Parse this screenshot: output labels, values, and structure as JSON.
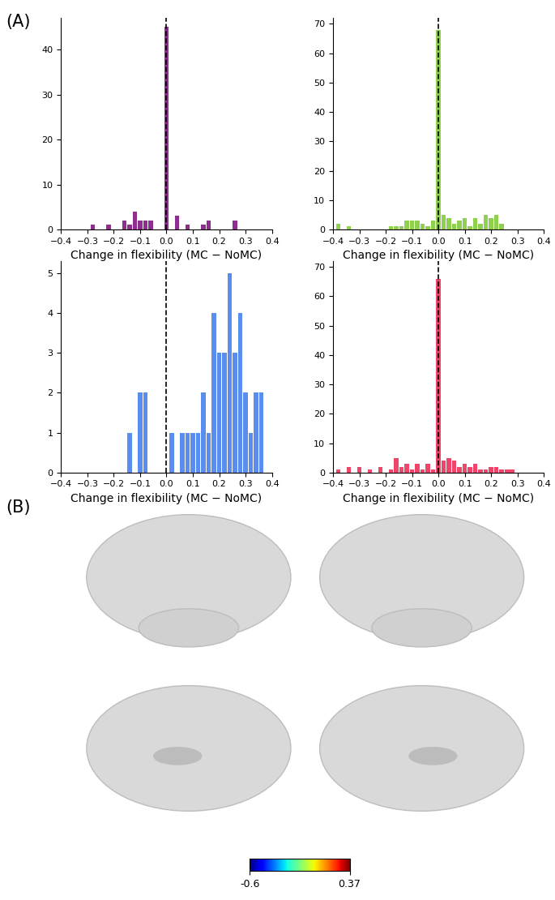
{
  "panel_labels": [
    "(A)",
    "(B)"
  ],
  "chart_data": [
    {
      "type": "histogram",
      "x_label": "Change in flexibility (MC − NoMC)",
      "color": "#8e2e8e",
      "bins": [
        -0.41,
        -0.39,
        -0.37,
        -0.35,
        -0.33,
        -0.31,
        -0.29,
        -0.27,
        -0.25,
        -0.23,
        -0.21,
        -0.19,
        -0.17,
        -0.15,
        -0.13,
        -0.11,
        -0.09,
        -0.07,
        -0.05,
        -0.03,
        -0.01,
        0.01,
        0.03,
        0.05,
        0.07,
        0.09,
        0.11,
        0.13,
        0.15,
        0.17,
        0.19,
        0.21,
        0.23,
        0.25,
        0.27,
        0.29,
        0.31,
        0.33,
        0.35,
        0.37,
        0.39,
        0.41
      ],
      "counts": [
        0,
        0,
        0,
        0,
        0,
        0,
        1,
        0,
        0,
        1,
        0,
        0,
        2,
        1,
        4,
        2,
        2,
        2,
        0,
        0,
        45,
        0,
        3,
        0,
        1,
        0,
        0,
        1,
        2,
        0,
        0,
        0,
        0,
        2,
        0,
        0,
        0,
        0,
        0,
        0,
        0
      ],
      "vline": 0,
      "xlim": [
        -0.4,
        0.4
      ],
      "xticks": [
        {
          "value": -0.4,
          "label": "−0.4"
        },
        {
          "value": -0.3,
          "label": "−0.3"
        },
        {
          "value": -0.2,
          "label": "−0.2"
        },
        {
          "value": -0.1,
          "label": "−0.1"
        },
        {
          "value": 0.0,
          "label": "0.0"
        },
        {
          "value": 0.1,
          "label": "0.1"
        },
        {
          "value": 0.2,
          "label": "0.2"
        },
        {
          "value": 0.3,
          "label": "0.3"
        },
        {
          "value": 0.4,
          "label": "0.4"
        }
      ],
      "ylim": [
        0,
        47
      ],
      "yticks": [
        0,
        10,
        20,
        30,
        40
      ]
    },
    {
      "type": "histogram",
      "x_label": "Change in flexibility (MC − NoMC)",
      "color": "#8fd14f",
      "bins": [
        -0.41,
        -0.39,
        -0.37,
        -0.35,
        -0.33,
        -0.31,
        -0.29,
        -0.27,
        -0.25,
        -0.23,
        -0.21,
        -0.19,
        -0.17,
        -0.15,
        -0.13,
        -0.11,
        -0.09,
        -0.07,
        -0.05,
        -0.03,
        -0.01,
        0.01,
        0.03,
        0.05,
        0.07,
        0.09,
        0.11,
        0.13,
        0.15,
        0.17,
        0.19,
        0.21,
        0.23,
        0.25,
        0.27,
        0.29,
        0.31,
        0.33,
        0.35,
        0.37,
        0.39,
        0.41
      ],
      "counts": [
        0,
        2,
        0,
        1,
        0,
        0,
        0,
        0,
        0,
        0,
        0,
        1,
        1,
        1,
        3,
        3,
        3,
        2,
        1,
        3,
        68,
        5,
        4,
        2,
        3,
        4,
        1,
        4,
        2,
        5,
        4,
        5,
        2,
        0,
        0,
        0,
        0,
        0,
        0,
        0,
        0
      ],
      "vline": 0,
      "xlim": [
        -0.4,
        0.4
      ],
      "xticks": [
        {
          "value": -0.4,
          "label": "−0.4"
        },
        {
          "value": -0.3,
          "label": "−0.3"
        },
        {
          "value": -0.2,
          "label": "−0.2"
        },
        {
          "value": -0.1,
          "label": "−0.1"
        },
        {
          "value": 0.0,
          "label": "0.0"
        },
        {
          "value": 0.1,
          "label": "0.1"
        },
        {
          "value": 0.2,
          "label": "0.2"
        },
        {
          "value": 0.3,
          "label": "0.3"
        },
        {
          "value": 0.4,
          "label": "0.4"
        }
      ],
      "ylim": [
        0,
        72
      ],
      "yticks": [
        0,
        10,
        20,
        30,
        40,
        50,
        60,
        70
      ]
    },
    {
      "type": "histogram",
      "x_label": "Change in flexibility (MC − NoMC)",
      "color": "#5b8def",
      "bins": [
        -0.41,
        -0.39,
        -0.37,
        -0.35,
        -0.33,
        -0.31,
        -0.29,
        -0.27,
        -0.25,
        -0.23,
        -0.21,
        -0.19,
        -0.17,
        -0.15,
        -0.13,
        -0.11,
        -0.09,
        -0.07,
        -0.05,
        -0.03,
        -0.01,
        0.01,
        0.03,
        0.05,
        0.07,
        0.09,
        0.11,
        0.13,
        0.15,
        0.17,
        0.19,
        0.21,
        0.23,
        0.25,
        0.27,
        0.29,
        0.31,
        0.33,
        0.35,
        0.37,
        0.39,
        0.41
      ],
      "counts": [
        0,
        0,
        0,
        0,
        0,
        0,
        0,
        0,
        0,
        0,
        0,
        0,
        0,
        1,
        0,
        2,
        2,
        0,
        0,
        0,
        0,
        1,
        0,
        1,
        1,
        1,
        1,
        2,
        1,
        4,
        3,
        3,
        5,
        3,
        4,
        2,
        1,
        2,
        2,
        0,
        0
      ],
      "vline": 0,
      "xlim": [
        -0.4,
        0.4
      ],
      "xticks": [
        {
          "value": -0.4,
          "label": "−0.4"
        },
        {
          "value": -0.3,
          "label": "−0.3"
        },
        {
          "value": -0.2,
          "label": "−0.2"
        },
        {
          "value": -0.1,
          "label": "−0.1"
        },
        {
          "value": 0.0,
          "label": "0.0"
        },
        {
          "value": 0.1,
          "label": "0.1"
        },
        {
          "value": 0.2,
          "label": "0.2"
        },
        {
          "value": 0.3,
          "label": "0.3"
        },
        {
          "value": 0.4,
          "label": "0.4"
        }
      ],
      "ylim": [
        0,
        5.3
      ],
      "yticks": [
        0,
        1,
        2,
        3,
        4,
        5
      ]
    },
    {
      "type": "histogram",
      "x_label": "Change in flexibility (MC − NoMC)",
      "color": "#f0456a",
      "bins": [
        -0.41,
        -0.39,
        -0.37,
        -0.35,
        -0.33,
        -0.31,
        -0.29,
        -0.27,
        -0.25,
        -0.23,
        -0.21,
        -0.19,
        -0.17,
        -0.15,
        -0.13,
        -0.11,
        -0.09,
        -0.07,
        -0.05,
        -0.03,
        -0.01,
        0.01,
        0.03,
        0.05,
        0.07,
        0.09,
        0.11,
        0.13,
        0.15,
        0.17,
        0.19,
        0.21,
        0.23,
        0.25,
        0.27,
        0.29,
        0.31,
        0.33,
        0.35,
        0.37,
        0.39,
        0.41
      ],
      "counts": [
        0,
        1,
        0,
        2,
        0,
        2,
        0,
        1,
        0,
        2,
        0,
        1,
        5,
        2,
        3,
        1,
        3,
        1,
        3,
        1,
        66,
        4,
        5,
        4,
        2,
        3,
        2,
        3,
        1,
        1,
        2,
        2,
        1,
        1,
        1,
        0,
        0,
        0,
        0,
        0,
        0
      ],
      "vline": 0,
      "xlim": [
        -0.4,
        0.4
      ],
      "xticks": [
        {
          "value": -0.4,
          "label": "−0.4"
        },
        {
          "value": -0.3,
          "label": "−0.3"
        },
        {
          "value": -0.2,
          "label": "−0.2"
        },
        {
          "value": -0.1,
          "label": "−0.1"
        },
        {
          "value": 0.0,
          "label": "0.0"
        },
        {
          "value": 0.1,
          "label": "0.1"
        },
        {
          "value": 0.2,
          "label": "0.2"
        },
        {
          "value": 0.3,
          "label": "0.3"
        },
        {
          "value": 0.4,
          "label": "0.4"
        }
      ],
      "ylim": [
        0,
        72
      ],
      "yticks": [
        0,
        10,
        20,
        30,
        40,
        50,
        60,
        70
      ]
    }
  ],
  "colorbar": {
    "range": [
      -0.6,
      0.37
    ],
    "ticks": [
      -0.6,
      0.37
    ]
  }
}
